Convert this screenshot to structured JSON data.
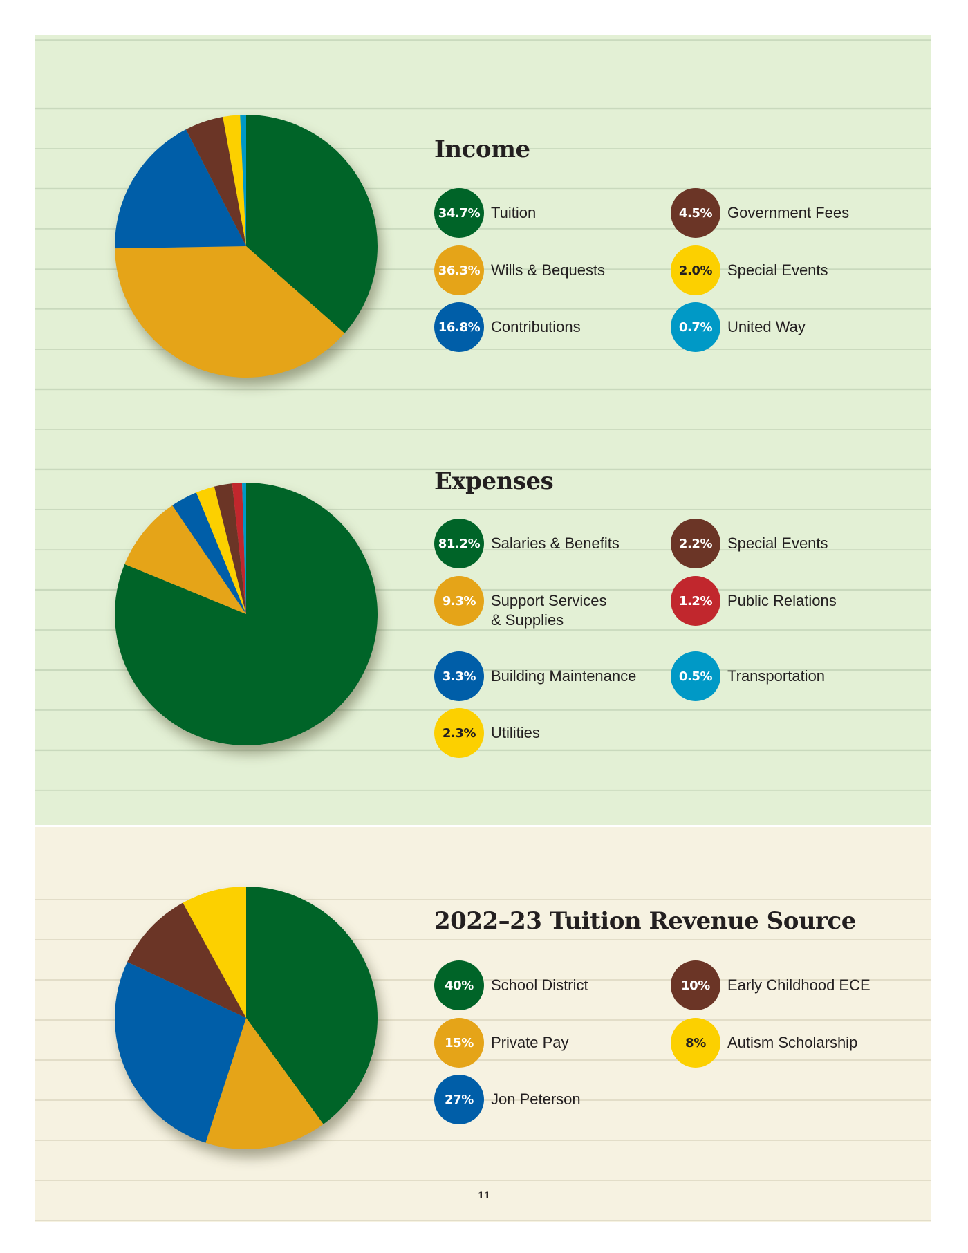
{
  "colors": {
    "green": "#006428",
    "gold": "#e5a418",
    "blue": "#005ea8",
    "brown": "#6b3526",
    "yellow": "#fcd000",
    "cyan": "#0099c6",
    "red": "#c1272d",
    "panel_green": "#e3f0d5",
    "panel_cream": "#f6f2e1"
  },
  "page_number": "11",
  "chart_data": [
    {
      "type": "pie",
      "title": "Income",
      "slices": [
        {
          "label": "Tuition",
          "value": 34.7,
          "display": "34.7%",
          "color": "#006428",
          "legend_text": "light"
        },
        {
          "label": "Wills & Bequests",
          "value": 36.3,
          "display": "36.3%",
          "color": "#e5a418",
          "legend_text": "light"
        },
        {
          "label": "Contributions",
          "value": 16.8,
          "display": "16.8%",
          "color": "#005ea8",
          "legend_text": "light"
        },
        {
          "label": "Government Fees",
          "value": 4.5,
          "display": "4.5%",
          "color": "#6b3526",
          "legend_text": "light"
        },
        {
          "label": "Special Events",
          "value": 2.0,
          "display": "2.0%",
          "color": "#fcd000",
          "legend_text": "dark"
        },
        {
          "label": "United Way",
          "value": 0.7,
          "display": "0.7%",
          "color": "#0099c6",
          "legend_text": "light"
        }
      ]
    },
    {
      "type": "pie",
      "title": "Expenses",
      "slices": [
        {
          "label": "Salaries & Benefits",
          "value": 81.2,
          "display": "81.2%",
          "color": "#006428",
          "legend_text": "light"
        },
        {
          "label": "Support Services\n& Supplies",
          "value": 9.3,
          "display": "9.3%",
          "color": "#e5a418",
          "legend_text": "light"
        },
        {
          "label": "Building Maintenance",
          "value": 3.3,
          "display": "3.3%",
          "color": "#005ea8",
          "legend_text": "light"
        },
        {
          "label": "Utilities",
          "value": 2.3,
          "display": "2.3%",
          "color": "#fcd000",
          "legend_text": "dark"
        },
        {
          "label": "Special Events",
          "value": 2.2,
          "display": "2.2%",
          "color": "#6b3526",
          "legend_text": "light"
        },
        {
          "label": "Public Relations",
          "value": 1.2,
          "display": "1.2%",
          "color": "#c1272d",
          "legend_text": "light"
        },
        {
          "label": "Transportation",
          "value": 0.5,
          "display": "0.5%",
          "color": "#0099c6",
          "legend_text": "light"
        }
      ]
    },
    {
      "type": "pie",
      "title": "2022–23 Tuition Revenue Source",
      "slices": [
        {
          "label": "School District",
          "value": 40,
          "display": "40%",
          "color": "#006428",
          "legend_text": "light"
        },
        {
          "label": "Private Pay",
          "value": 15,
          "display": "15%",
          "color": "#e5a418",
          "legend_text": "light"
        },
        {
          "label": "Jon Peterson",
          "value": 27,
          "display": "27%",
          "color": "#005ea8",
          "legend_text": "light"
        },
        {
          "label": "Early Childhood ECE",
          "value": 10,
          "display": "10%",
          "color": "#6b3526",
          "legend_text": "light"
        },
        {
          "label": "Autism Scholarship",
          "value": 8,
          "display": "8%",
          "color": "#fcd000",
          "legend_text": "dark"
        }
      ]
    }
  ]
}
